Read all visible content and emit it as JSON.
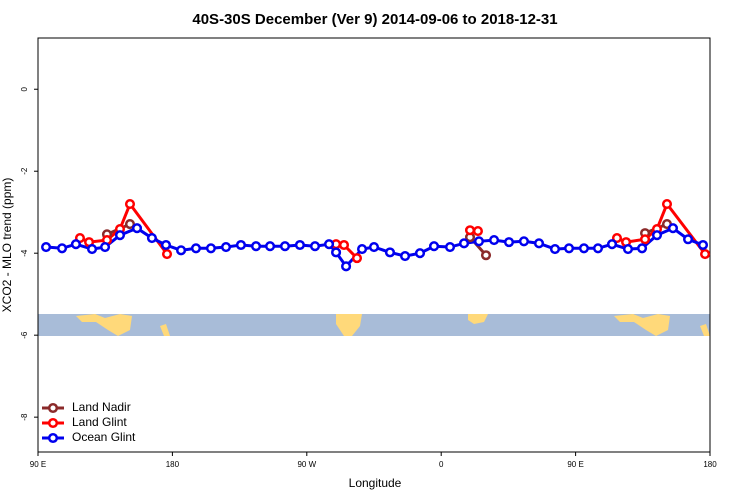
{
  "chart_data": {
    "type": "line",
    "title": "40S-30S December (Ver 9)   2014-09-06 to 2018-12-31",
    "x_label": "Longitude",
    "y_label": "XCO2 - MLO trend (ppm)",
    "xlim": [
      90,
      540
    ],
    "ylim": [
      -8.85,
      1.25
    ],
    "xticks": [
      {
        "value": 90,
        "label": "90 E"
      },
      180,
      {
        "value": 270,
        "label": "90 W"
      },
      {
        "value": 360,
        "label": "0"
      },
      {
        "value": 450,
        "label": "90 E"
      },
      {
        "value": 540,
        "label": "180"
      }
    ],
    "yticks": [
      0,
      -2,
      -4,
      -6,
      -8
    ],
    "legend": "bottom-left",
    "series": [
      {
        "name": "Land Nadir",
        "color": "#8b2a2a",
        "x": [
          136.2,
          151.6,
          null,
          379.3,
          390.0,
          null,
          496.5,
          511.2
        ],
        "values": [
          -3.54,
          -3.29,
          null,
          -3.61,
          -4.05,
          null,
          -3.51,
          -3.29
        ]
      },
      {
        "name": "Land Glint",
        "color": "#ff0000",
        "x": [
          118.1,
          124.2,
          136.2,
          144.9,
          151.6,
          176.4,
          null,
          289.6,
          294.9,
          303.6,
          null,
          379.3,
          384.6,
          null,
          477.7,
          483.8,
          496.5,
          504.5,
          511.2,
          536.7
        ],
        "values": [
          -3.63,
          -3.73,
          -3.68,
          -3.41,
          -2.8,
          -4.02,
          null,
          -3.78,
          -3.8,
          -4.12,
          null,
          -3.44,
          -3.46,
          null,
          -3.63,
          -3.73,
          -3.66,
          -3.41,
          -2.8,
          -4.02
        ]
      },
      {
        "name": "Ocean Glint",
        "color": "#0000ee",
        "x": [
          95.4,
          106.1,
          115.4,
          126.2,
          134.9,
          144.9,
          156.3,
          166.3,
          175.7,
          185.8,
          195.8,
          205.8,
          215.9,
          225.9,
          236.0,
          245.4,
          255.4,
          265.4,
          275.5,
          284.9,
          289.6,
          296.3,
          307.0,
          315.0,
          325.7,
          335.8,
          345.8,
          355.2,
          365.9,
          375.3,
          385.3,
          395.4,
          405.4,
          415.4,
          425.5,
          436.2,
          445.6,
          455.6,
          465.0,
          474.4,
          485.1,
          494.5,
          504.5,
          515.2,
          525.3,
          535.3
        ],
        "values": [
          -3.85,
          -3.88,
          -3.78,
          -3.9,
          -3.85,
          -3.56,
          -3.39,
          -3.63,
          -3.8,
          -3.93,
          -3.88,
          -3.88,
          -3.85,
          -3.8,
          -3.83,
          -3.83,
          -3.83,
          -3.8,
          -3.83,
          -3.78,
          -3.98,
          -4.32,
          -3.9,
          -3.85,
          -3.98,
          -4.07,
          -4.0,
          -3.83,
          -3.85,
          -3.76,
          -3.71,
          -3.68,
          -3.73,
          -3.71,
          -3.76,
          -3.9,
          -3.88,
          -3.88,
          -3.88,
          -3.78,
          -3.9,
          -3.88,
          -3.56,
          -3.39,
          -3.66,
          -3.8
        ]
      }
    ]
  }
}
